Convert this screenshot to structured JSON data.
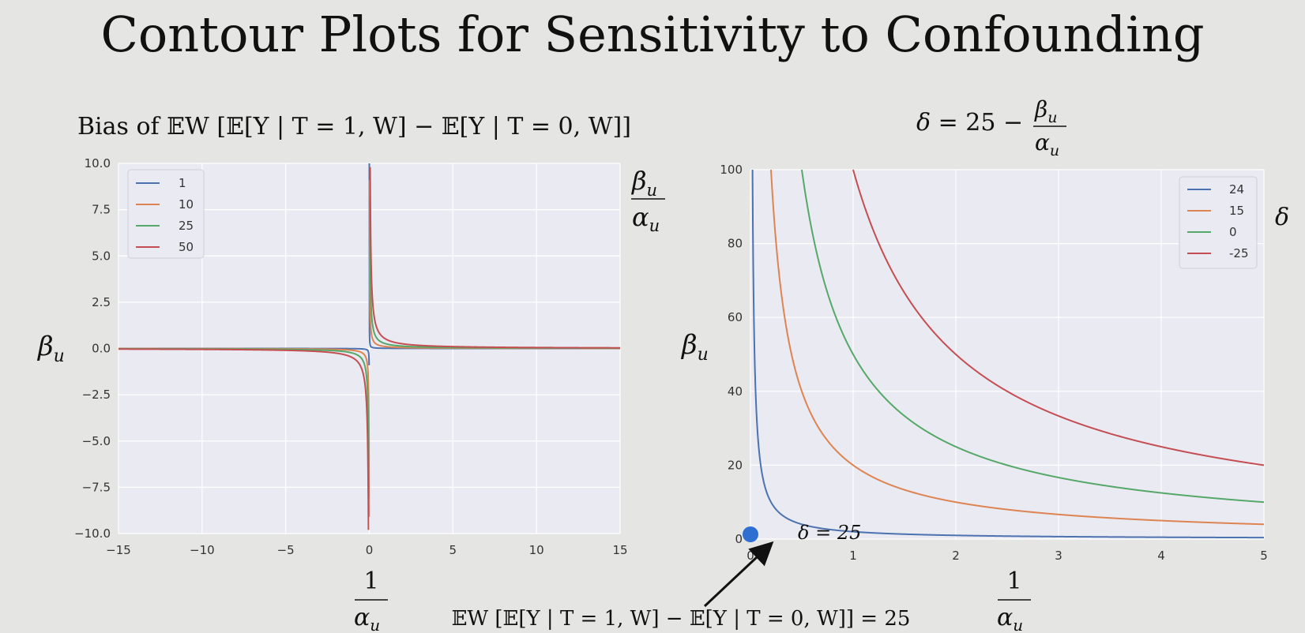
{
  "slide": {
    "title": "Contour Plots for Sensitivity to Confounding",
    "annotation_arrow_text": "𝔼W [𝔼[Y | T = 1, W] − 𝔼[Y | T = 0, W]] = 25",
    "point_label": "δ = 25"
  },
  "chart_data": [
    {
      "type": "line",
      "title": "Bias of 𝔼W [𝔼[Y | T = 1, W] − 𝔼[Y | T = 0, W]]",
      "xlabel": "1/αu",
      "ylabel": "βu",
      "contour_label": "βu/αu",
      "xlim": [
        -15,
        15
      ],
      "ylim": [
        -10,
        10
      ],
      "xticks": [
        -15,
        -10,
        -5,
        0,
        5,
        10,
        15
      ],
      "yticks": [
        -10.0,
        -7.5,
        -5.0,
        -2.5,
        0.0,
        2.5,
        5.0,
        7.5,
        10.0
      ],
      "grid": true,
      "legend": "top-left",
      "relation": "y = level * x",
      "series": [
        {
          "name": "1",
          "level": 1,
          "color": "#4c72b0"
        },
        {
          "name": "10",
          "level": 10,
          "color": "#dd8452"
        },
        {
          "name": "25",
          "level": 25,
          "color": "#55a868"
        },
        {
          "name": "50",
          "level": 50,
          "color": "#c44e52"
        }
      ]
    },
    {
      "type": "line",
      "title": "δ = 25 − βu/αu",
      "xlabel": "1/αu",
      "ylabel": "βu",
      "contour_label": "δ",
      "xlim": [
        0,
        5
      ],
      "ylim": [
        0,
        100
      ],
      "xticks": [
        0,
        1,
        2,
        3,
        4,
        5
      ],
      "yticks": [
        0,
        20,
        40,
        60,
        80,
        100
      ],
      "grid": true,
      "legend": "top-right",
      "relation": "y = (25 - delta) * x",
      "series": [
        {
          "name": "24",
          "delta": 24,
          "color": "#4c72b0"
        },
        {
          "name": "15",
          "delta": 15,
          "color": "#dd8452"
        },
        {
          "name": "0",
          "delta": 0,
          "color": "#55a868"
        },
        {
          "name": "-25",
          "delta": -25,
          "color": "#c44e52"
        }
      ],
      "highlight_point": {
        "x": 0,
        "y": 0,
        "color": "#2f6fd1"
      }
    }
  ]
}
